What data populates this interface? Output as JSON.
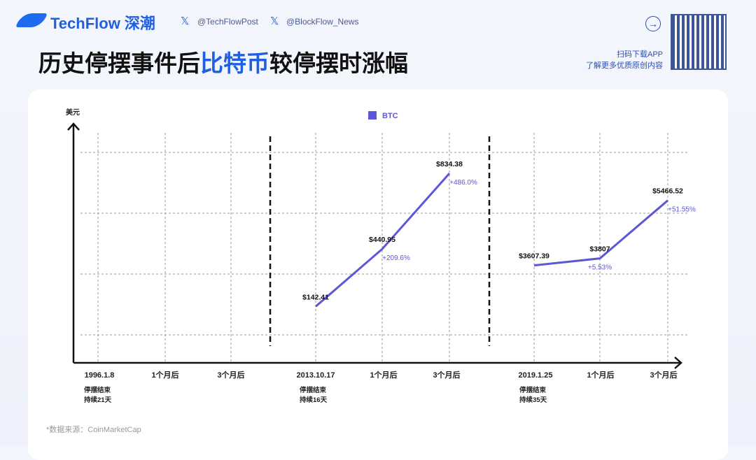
{
  "header": {
    "brand": "TechFlow 深潮",
    "x_icon": "x-logo-icon",
    "handles": [
      "@TechFlowPost",
      "@BlockFlow_News"
    ],
    "title_pre": "历史停摆事件后",
    "title_hl": "比特币",
    "title_post": "较停摆时涨幅",
    "app_line1": "扫码下载APP",
    "app_line2": "了解更多优质原创内容"
  },
  "colors": {
    "line": "#5b57d6",
    "brand": "#1f5fe0"
  },
  "chart_data": {
    "type": "line",
    "ylabel": "美元",
    "legend": "BTC",
    "legend_position": "top-center",
    "grid": true,
    "x_ticks": [
      "1996.1.8",
      "1个月后",
      "3个月后",
      "2013.10.17",
      "1个月后",
      "3个月后",
      "2019.1.25",
      "1个月后",
      "3个月后"
    ],
    "groups": [
      {
        "sublabel": [
          "停摆结束",
          "持续21天"
        ],
        "values": [],
        "pct": []
      },
      {
        "sublabel": [
          "停摆结束",
          "持续16天"
        ],
        "values": [
          142.41,
          440.95,
          834.38
        ],
        "labels": [
          "$142.41",
          "$440.95",
          "$834.38"
        ],
        "pct": [
          "",
          "+209.6%",
          "+486.0%"
        ]
      },
      {
        "sublabel": [
          "停摆结束",
          "持续35天"
        ],
        "values": [
          3607.39,
          3807,
          5466.52
        ],
        "labels": [
          "$3607.39",
          "$3807",
          "$5466.52"
        ],
        "pct": [
          "",
          "+5.53%",
          "+51.55%"
        ]
      }
    ]
  },
  "source": "*数据来源：CoinMarketCap"
}
